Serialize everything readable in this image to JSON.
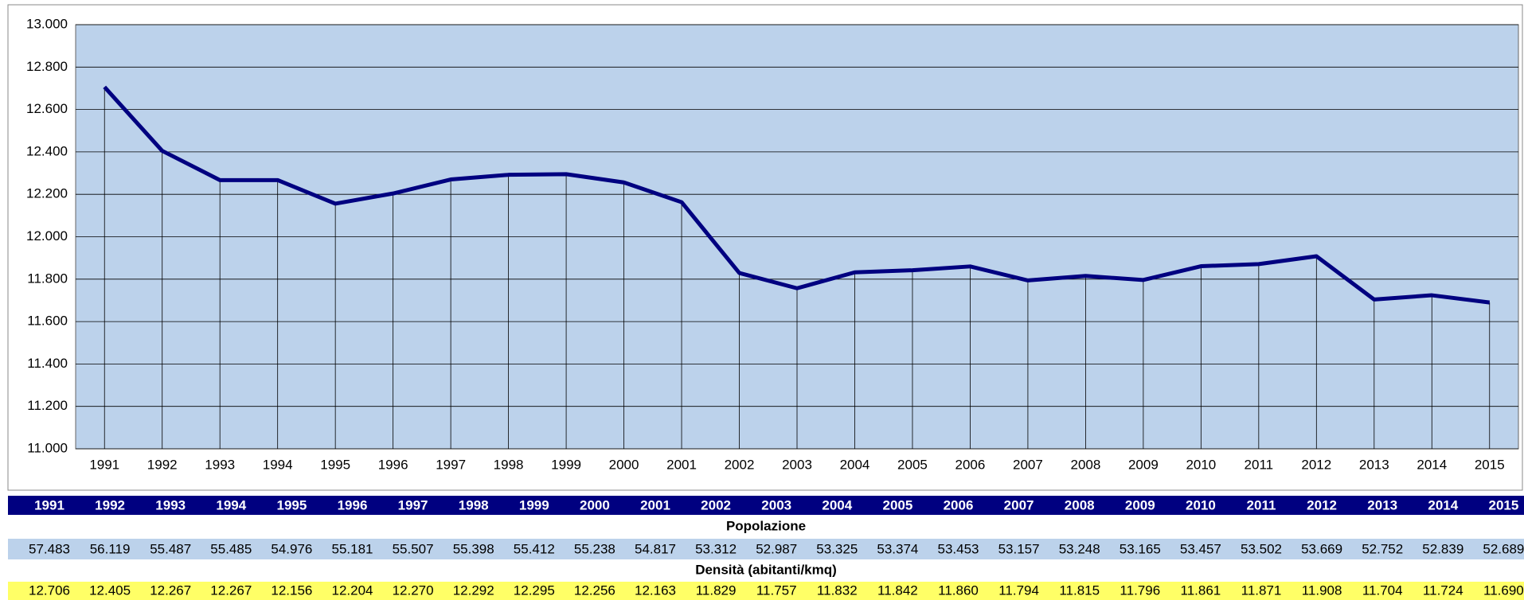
{
  "chart_data": {
    "type": "line",
    "categories": [
      "1991",
      "1992",
      "1993",
      "1994",
      "1995",
      "1996",
      "1997",
      "1998",
      "1999",
      "2000",
      "2001",
      "2002",
      "2003",
      "2004",
      "2005",
      "2006",
      "2007",
      "2008",
      "2009",
      "2010",
      "2011",
      "2012",
      "2013",
      "2014",
      "2015"
    ],
    "values": [
      12.706,
      12.405,
      12.267,
      12.267,
      12.156,
      12.204,
      12.27,
      12.292,
      12.295,
      12.256,
      12.163,
      11.829,
      11.757,
      11.832,
      11.842,
      11.86,
      11.794,
      11.815,
      11.796,
      11.861,
      11.871,
      11.908,
      11.704,
      11.724,
      11.69
    ],
    "value_labels": [
      "12.706",
      "12.405",
      "12.267",
      "12.267",
      "12.156",
      "12.204",
      "12.270",
      "12.292",
      "12.295",
      "12.256",
      "12.163",
      "11.829",
      "11.757",
      "11.832",
      "11.842",
      "11.860",
      "11.794",
      "11.815",
      "11.796",
      "11.861",
      "11.871",
      "11.908",
      "11.704",
      "11.724",
      "11.690"
    ],
    "color": "#000080",
    "ylim": [
      11,
      13
    ],
    "yticks": [
      {
        "value": 11,
        "label": "11.000"
      },
      {
        "value": 11.2,
        "label": "11.200"
      },
      {
        "value": 11.4,
        "label": "11.400"
      },
      {
        "value": 11.6,
        "label": "11.600"
      },
      {
        "value": 11.8,
        "label": "11.800"
      },
      {
        "value": 12,
        "label": "12.000"
      },
      {
        "value": 12.2,
        "label": "12.200"
      },
      {
        "value": 12.4,
        "label": "12.400"
      },
      {
        "value": 12.6,
        "label": "12.600"
      },
      {
        "value": 12.8,
        "label": "12.800"
      },
      {
        "value": 13,
        "label": "13.000"
      }
    ],
    "grid": true,
    "drop_lines": true
  },
  "table": {
    "population_label": "Popolazione",
    "population": [
      "57.483",
      "56.119",
      "55.487",
      "55.485",
      "54.976",
      "55.181",
      "55.507",
      "55.398",
      "55.412",
      "55.238",
      "54.817",
      "53.312",
      "52.987",
      "53.325",
      "53.374",
      "53.453",
      "53.157",
      "53.248",
      "53.165",
      "53.457",
      "53.502",
      "53.669",
      "52.752",
      "52.839",
      "52.689"
    ],
    "density_label": "Densità (abitanti/kmq)"
  }
}
